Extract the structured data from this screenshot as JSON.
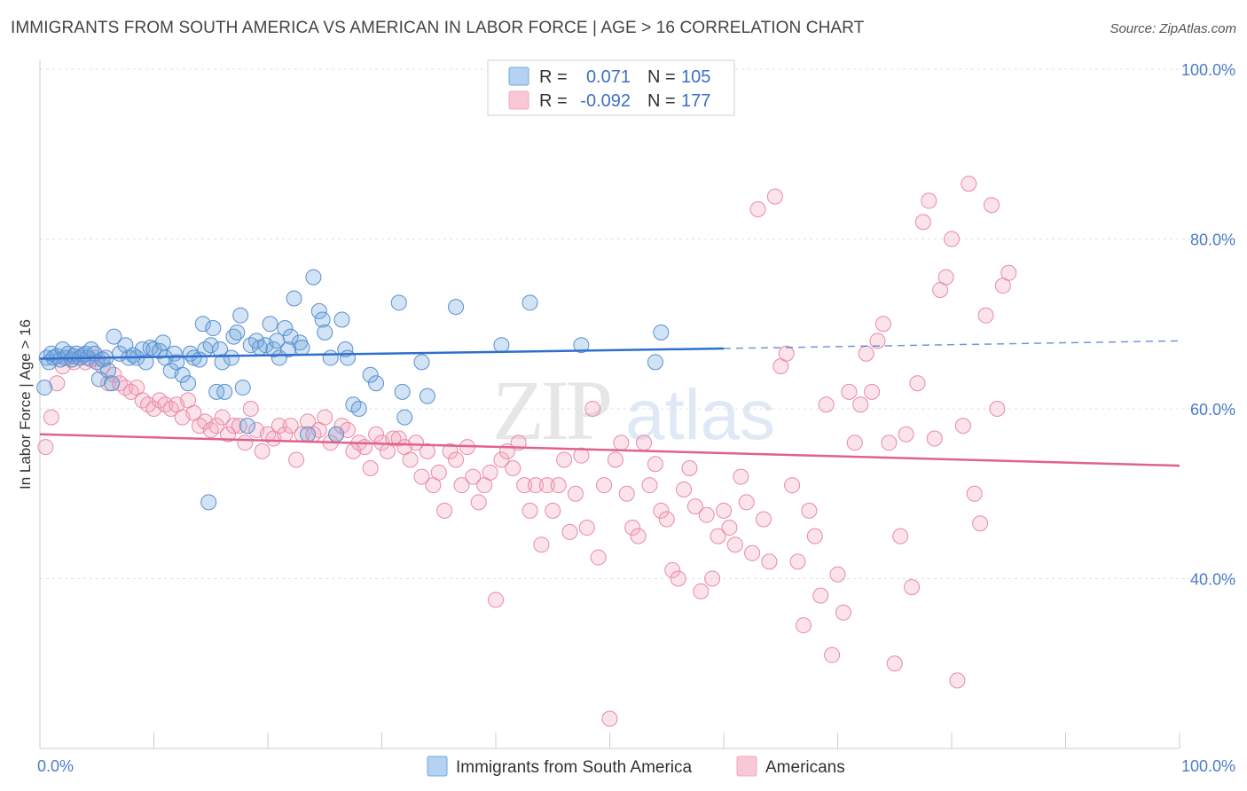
{
  "title": "IMMIGRANTS FROM SOUTH AMERICA VS AMERICAN IN LABOR FORCE | AGE > 16 CORRELATION CHART",
  "source": "Source: ZipAtlas.com",
  "watermark": {
    "zip": "ZIP",
    "atlas": "atlas"
  },
  "legend": {
    "rows": [
      {
        "r_label": "R =",
        "r_value": "0.071",
        "n_label": "N =",
        "n_value": "105",
        "color": "#6fa8dc"
      },
      {
        "r_label": "R =",
        "r_value": "-0.092",
        "n_label": "N =",
        "n_value": "177",
        "color": "#f4a7bd"
      }
    ]
  },
  "chart_data": {
    "type": "scatter",
    "title": "IMMIGRANTS FROM SOUTH AMERICA VS AMERICAN IN LABOR FORCE | AGE > 16 CORRELATION CHART",
    "xlabel": "",
    "ylabel": "In Labor Force | Age > 16",
    "xlim": [
      0,
      100
    ],
    "ylim": [
      20,
      100
    ],
    "x_tick_labels": [
      "0.0%",
      "100.0%"
    ],
    "y_tick_labels": [
      "40.0%",
      "60.0%",
      "80.0%",
      "100.0%"
    ],
    "y_ticks": [
      40,
      60,
      80,
      100
    ],
    "grid": true,
    "legend_position": "top-center",
    "series": [
      {
        "name": "Immigrants from South America",
        "color": "#6fa8dc",
        "stroke": "#5a8fd0",
        "trend": {
          "x0": 0,
          "y0": 65.9,
          "x1": 60,
          "y1": 67.1,
          "dash_to": 100,
          "dash_y": 68.0,
          "color": "#2f6fcd"
        },
        "points": [
          [
            0.4,
            62.5
          ],
          [
            0.6,
            66
          ],
          [
            0.8,
            65.5
          ],
          [
            1,
            66.5
          ],
          [
            1.2,
            66
          ],
          [
            1.5,
            66.2
          ],
          [
            1.8,
            65.8
          ],
          [
            2,
            67
          ],
          [
            2.2,
            66
          ],
          [
            2.5,
            66.5
          ],
          [
            2.8,
            65.8
          ],
          [
            3,
            66.2
          ],
          [
            3.2,
            66.5
          ],
          [
            3.5,
            66
          ],
          [
            3.8,
            66.3
          ],
          [
            4,
            66.5
          ],
          [
            4.2,
            66
          ],
          [
            4.5,
            67
          ],
          [
            4.8,
            66.5
          ],
          [
            5,
            65.5
          ],
          [
            5.2,
            63.5
          ],
          [
            5.5,
            65.8
          ],
          [
            5.8,
            66
          ],
          [
            6,
            64.5
          ],
          [
            6.3,
            63
          ],
          [
            6.5,
            68.5
          ],
          [
            7,
            66.5
          ],
          [
            7.5,
            67.5
          ],
          [
            7.8,
            66
          ],
          [
            8.2,
            66.3
          ],
          [
            8.5,
            66
          ],
          [
            9,
            67
          ],
          [
            9.3,
            65.5
          ],
          [
            9.7,
            67.2
          ],
          [
            10,
            67
          ],
          [
            10.5,
            66.8
          ],
          [
            10.8,
            67.8
          ],
          [
            11,
            66
          ],
          [
            11.5,
            64.5
          ],
          [
            11.8,
            66.5
          ],
          [
            12,
            65.5
          ],
          [
            12.5,
            64
          ],
          [
            13,
            63
          ],
          [
            13.2,
            66.5
          ],
          [
            13.5,
            66
          ],
          [
            14,
            65.8
          ],
          [
            14.3,
            70
          ],
          [
            14.5,
            67
          ],
          [
            14.8,
            49
          ],
          [
            15,
            67.5
          ],
          [
            15.2,
            69.5
          ],
          [
            15.5,
            62
          ],
          [
            15.8,
            67
          ],
          [
            16,
            65.5
          ],
          [
            16.2,
            62
          ],
          [
            16.8,
            66
          ],
          [
            17,
            68.5
          ],
          [
            17.3,
            69
          ],
          [
            17.6,
            71
          ],
          [
            17.8,
            62.5
          ],
          [
            18.2,
            58
          ],
          [
            18.5,
            67.5
          ],
          [
            19,
            68
          ],
          [
            19.3,
            67.2
          ],
          [
            19.8,
            67.5
          ],
          [
            20.2,
            70
          ],
          [
            20.5,
            67
          ],
          [
            20.8,
            68
          ],
          [
            21,
            66
          ],
          [
            21.5,
            69.5
          ],
          [
            21.8,
            67
          ],
          [
            22,
            68.5
          ],
          [
            22.3,
            73
          ],
          [
            22.8,
            67.8
          ],
          [
            23,
            67.2
          ],
          [
            23.5,
            57
          ],
          [
            24,
            75.5
          ],
          [
            24.5,
            71.5
          ],
          [
            24.8,
            70.5
          ],
          [
            25,
            69
          ],
          [
            25.5,
            66
          ],
          [
            26,
            57
          ],
          [
            26.5,
            70.5
          ],
          [
            26.8,
            67
          ],
          [
            27,
            66
          ],
          [
            27.5,
            60.5
          ],
          [
            28,
            60
          ],
          [
            29,
            64
          ],
          [
            29.5,
            63
          ],
          [
            31.5,
            72.5
          ],
          [
            31.8,
            62
          ],
          [
            32,
            59
          ],
          [
            33.5,
            65.5
          ],
          [
            34,
            61.5
          ],
          [
            36.5,
            72
          ],
          [
            40.5,
            67.5
          ],
          [
            43,
            72.5
          ],
          [
            47.5,
            67.5
          ],
          [
            54,
            65.5
          ],
          [
            54.5,
            69
          ]
        ]
      },
      {
        "name": "Americans",
        "color": "#f4a7bd",
        "stroke": "#e98aa8",
        "trend": {
          "x0": 0,
          "y0": 57.0,
          "x1": 100,
          "y1": 53.3,
          "color": "#e0628c"
        },
        "points": [
          [
            0.5,
            55.5
          ],
          [
            1,
            59
          ],
          [
            1.5,
            63
          ],
          [
            2,
            65
          ],
          [
            2.5,
            66
          ],
          [
            3,
            65.5
          ],
          [
            3.5,
            66
          ],
          [
            4,
            65.5
          ],
          [
            4.5,
            65.8
          ],
          [
            5,
            66
          ],
          [
            5.5,
            65
          ],
          [
            6,
            63
          ],
          [
            6.5,
            64
          ],
          [
            7,
            63
          ],
          [
            7.5,
            62.5
          ],
          [
            8,
            62
          ],
          [
            8.5,
            62.5
          ],
          [
            9,
            61
          ],
          [
            9.5,
            60.5
          ],
          [
            10,
            60
          ],
          [
            10.5,
            61
          ],
          [
            11,
            60.5
          ],
          [
            11.5,
            60
          ],
          [
            12,
            60.5
          ],
          [
            12.5,
            59
          ],
          [
            13,
            61
          ],
          [
            13.5,
            59.5
          ],
          [
            14,
            58
          ],
          [
            14.5,
            58.5
          ],
          [
            15,
            57.5
          ],
          [
            15.5,
            58
          ],
          [
            16,
            59
          ],
          [
            16.5,
            57
          ],
          [
            17,
            58
          ],
          [
            17.5,
            58
          ],
          [
            18,
            56
          ],
          [
            18.5,
            60
          ],
          [
            19,
            57.5
          ],
          [
            19.5,
            55
          ],
          [
            20,
            57
          ],
          [
            20.5,
            56.5
          ],
          [
            21,
            58
          ],
          [
            21.5,
            57
          ],
          [
            22,
            58
          ],
          [
            22.5,
            54
          ],
          [
            23,
            57
          ],
          [
            23.5,
            58.5
          ],
          [
            24,
            57
          ],
          [
            24.5,
            57.5
          ],
          [
            25,
            59
          ],
          [
            25.5,
            56
          ],
          [
            26,
            57
          ],
          [
            26.5,
            58
          ],
          [
            27,
            57.5
          ],
          [
            27.5,
            55
          ],
          [
            28,
            56
          ],
          [
            28.5,
            55.5
          ],
          [
            29,
            53
          ],
          [
            29.5,
            57
          ],
          [
            30,
            56
          ],
          [
            30.5,
            55
          ],
          [
            31,
            56.5
          ],
          [
            31.5,
            56.5
          ],
          [
            32,
            55.5
          ],
          [
            32.5,
            54
          ],
          [
            33,
            56
          ],
          [
            33.5,
            52
          ],
          [
            34,
            55
          ],
          [
            34.5,
            51
          ],
          [
            35,
            52.5
          ],
          [
            35.5,
            48
          ],
          [
            36,
            55
          ],
          [
            36.5,
            54
          ],
          [
            37,
            51
          ],
          [
            37.5,
            55.5
          ],
          [
            38,
            52
          ],
          [
            38.5,
            49
          ],
          [
            39,
            51
          ],
          [
            39.5,
            52.5
          ],
          [
            40,
            37.5
          ],
          [
            40.5,
            54
          ],
          [
            41,
            55
          ],
          [
            41.5,
            53
          ],
          [
            42,
            56
          ],
          [
            42.5,
            51
          ],
          [
            43,
            48
          ],
          [
            43.5,
            51
          ],
          [
            44,
            44
          ],
          [
            44.5,
            51
          ],
          [
            45,
            48
          ],
          [
            45.5,
            51
          ],
          [
            46,
            54
          ],
          [
            46.5,
            45.5
          ],
          [
            47,
            50
          ],
          [
            47.5,
            54.5
          ],
          [
            48,
            46
          ],
          [
            48.5,
            60
          ],
          [
            49,
            42.5
          ],
          [
            49.5,
            51
          ],
          [
            50,
            23.5
          ],
          [
            50.5,
            54
          ],
          [
            51,
            56
          ],
          [
            51.5,
            50
          ],
          [
            52,
            46
          ],
          [
            52.5,
            45
          ],
          [
            53,
            56
          ],
          [
            53.5,
            51
          ],
          [
            54,
            53.5
          ],
          [
            54.5,
            48
          ],
          [
            55,
            47
          ],
          [
            55.5,
            41
          ],
          [
            56,
            40
          ],
          [
            56.5,
            50.5
          ],
          [
            57,
            53
          ],
          [
            57.5,
            48.5
          ],
          [
            58,
            38.5
          ],
          [
            58.5,
            47.5
          ],
          [
            59,
            40
          ],
          [
            59.5,
            45
          ],
          [
            60,
            48
          ],
          [
            60.5,
            46
          ],
          [
            61,
            44
          ],
          [
            61.5,
            52
          ],
          [
            62,
            49
          ],
          [
            62.5,
            43
          ],
          [
            63,
            83.5
          ],
          [
            63.5,
            47
          ],
          [
            64,
            42
          ],
          [
            64.5,
            85
          ],
          [
            65,
            65
          ],
          [
            65.5,
            66.5
          ],
          [
            66,
            51
          ],
          [
            66.5,
            42
          ],
          [
            67,
            34.5
          ],
          [
            67.5,
            48
          ],
          [
            68,
            45
          ],
          [
            68.5,
            38
          ],
          [
            69,
            60.5
          ],
          [
            69.5,
            31
          ],
          [
            70,
            40.5
          ],
          [
            70.5,
            36
          ],
          [
            71,
            62
          ],
          [
            71.5,
            56
          ],
          [
            72,
            60.5
          ],
          [
            72.5,
            66.5
          ],
          [
            73,
            62
          ],
          [
            73.5,
            68
          ],
          [
            74,
            70
          ],
          [
            74.5,
            56
          ],
          [
            75,
            30
          ],
          [
            75.5,
            45
          ],
          [
            76,
            57
          ],
          [
            76.5,
            39
          ],
          [
            77,
            63
          ],
          [
            77.5,
            82
          ],
          [
            78,
            84.5
          ],
          [
            78.5,
            56.5
          ],
          [
            79,
            74
          ],
          [
            79.5,
            75.5
          ],
          [
            80,
            80
          ],
          [
            80.5,
            28
          ],
          [
            81,
            58
          ],
          [
            81.5,
            86.5
          ],
          [
            82,
            50
          ],
          [
            82.5,
            46.5
          ],
          [
            83,
            71
          ],
          [
            83.5,
            84
          ],
          [
            84,
            60
          ],
          [
            84.5,
            74.5
          ],
          [
            85,
            76
          ]
        ]
      }
    ]
  },
  "bottom_legend": [
    {
      "label": "Immigrants from South America",
      "color": "#6fa8dc"
    },
    {
      "label": "Americans",
      "color": "#f4a7bd"
    }
  ]
}
